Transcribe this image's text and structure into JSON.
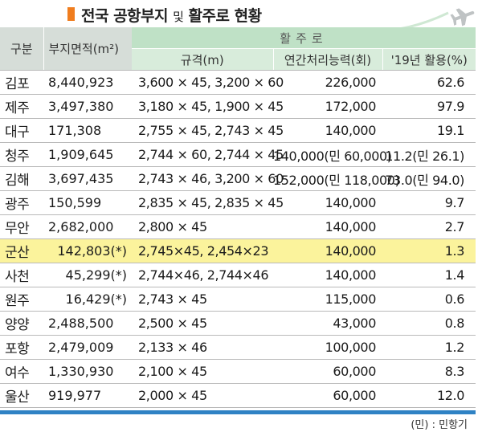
{
  "title": {
    "part1": "전국 공항부지 ",
    "part2": "및",
    "part3": " 활주로 현황"
  },
  "icons": {
    "plane": "airplane-icon"
  },
  "colors": {
    "title_mark": "#f07d1e",
    "highlight": "#fbf39c",
    "header_green": "#bfe1c6",
    "bottom_bar": "#2f82c4"
  },
  "header": {
    "gubun": "구분",
    "area": "부지면적(m²)",
    "runway_group": "활주로",
    "size": "규격(m)",
    "capacity": "연간처리능력(회)",
    "usage": "'19년 활용(%)"
  },
  "rows": [
    {
      "name": "김포",
      "area": "8,440,923",
      "size": "3,600 × 45, 3,200 × 60",
      "capacity": "226,000",
      "usage": "62.6"
    },
    {
      "name": "제주",
      "area": "3,497,380",
      "size": "3,180 × 45, 1,900 × 45",
      "capacity": "172,000",
      "usage": "97.9"
    },
    {
      "name": "대구",
      "area": "171,308",
      "size": "2,755 × 45, 2,743 × 45",
      "capacity": "140,000",
      "usage": "19.1"
    },
    {
      "name": "청주",
      "area": "1,909,645",
      "size": "2,744 × 60, 2,744 × 45",
      "capacity": "140,000(민 60,000)",
      "usage": "11.2(민 26.1)"
    },
    {
      "name": "김해",
      "area": "3,697,435",
      "size": "2,743 × 46, 3,200 × 60",
      "capacity": "152,000(민 118,000)",
      "usage": "73.0(민 94.0)"
    },
    {
      "name": "광주",
      "area": "150,599",
      "size": "2,835 × 45, 2,835 × 45",
      "capacity": "140,000",
      "usage": "9.7"
    },
    {
      "name": "무안",
      "area": "2,682,000",
      "size": "2,800 × 45",
      "capacity": "140,000",
      "usage": "2.7"
    },
    {
      "name": "군산",
      "area": "142,803(*)",
      "size": "2,745×45, 2,454×23",
      "capacity": "140,000",
      "usage": "1.3"
    },
    {
      "name": "사천",
      "area": "45,299(*)",
      "size": "2,744×46, 2,744×46",
      "capacity": "140,000",
      "usage": "1.4"
    },
    {
      "name": "원주",
      "area": "16,429(*)",
      "size": "2,743 × 45",
      "capacity": "115,000",
      "usage": "0.6"
    },
    {
      "name": "양양",
      "area": "2,488,500",
      "size": "2,500 × 45",
      "capacity": "43,000",
      "usage": "0.8"
    },
    {
      "name": "포항",
      "area": "2,479,009",
      "size": "2,133 × 46",
      "capacity": "100,000",
      "usage": "1.2"
    },
    {
      "name": "여수",
      "area": "1,330,930",
      "size": "2,100 × 45",
      "capacity": "60,000",
      "usage": "8.3"
    },
    {
      "name": "울산",
      "area": "919,977",
      "size": "2,000 × 45",
      "capacity": "60,000",
      "usage": "12.0"
    }
  ],
  "footnote": "(민) : 민항기"
}
